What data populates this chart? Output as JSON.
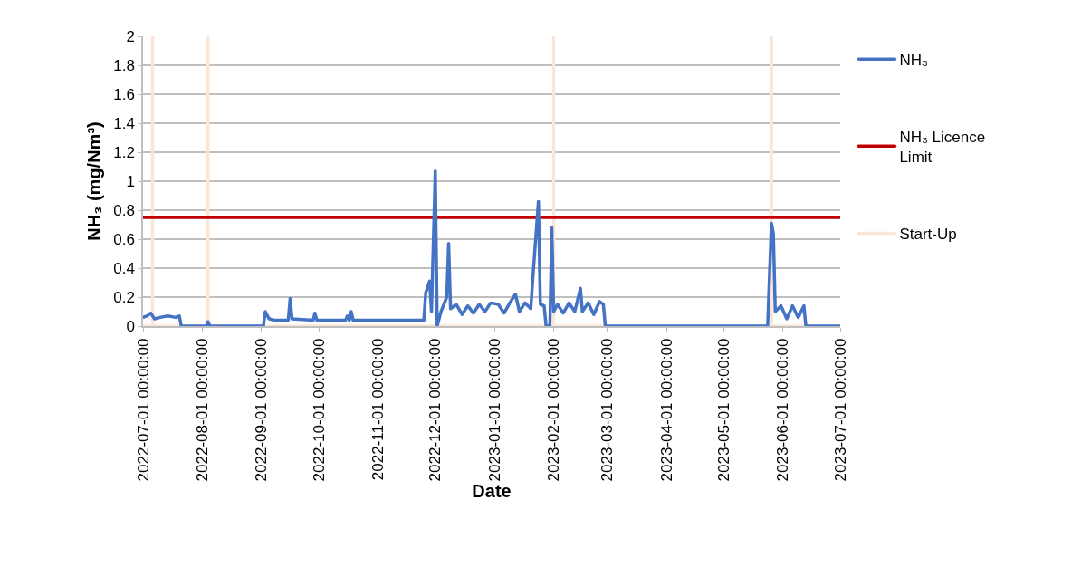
{
  "chart_data": {
    "type": "line",
    "xlabel": "Date",
    "ylabel": "NH₃ (mg/Nm³)",
    "xlim": [
      "2022-07-01",
      "2023-07-01"
    ],
    "xticks": [
      {
        "value": "2022-07-01",
        "label": "2022-07-01 00:00:00"
      },
      {
        "value": "2022-08-01",
        "label": "2022-08-01 00:00:00"
      },
      {
        "value": "2022-09-01",
        "label": "2022-09-01 00:00:00"
      },
      {
        "value": "2022-10-01",
        "label": "2022-10-01 00:00:00"
      },
      {
        "value": "2022-11-01",
        "label": "2022-11-01 00:00:00"
      },
      {
        "value": "2022-12-01",
        "label": "2022-12-01 00:00:00"
      },
      {
        "value": "2023-01-01",
        "label": "2023-01-01 00:00:00"
      },
      {
        "value": "2023-02-01",
        "label": "2023-02-01 00:00:00"
      },
      {
        "value": "2023-03-01",
        "label": "2023-03-01 00:00:00"
      },
      {
        "value": "2023-04-01",
        "label": "2023-04-01 00:00:00"
      },
      {
        "value": "2023-05-01",
        "label": "2023-05-01 00:00:00"
      },
      {
        "value": "2023-06-01",
        "label": "2023-06-01 00:00:00"
      },
      {
        "value": "2023-07-01",
        "label": "2023-07-01 00:00:00"
      }
    ],
    "ylim": [
      0,
      2
    ],
    "yticks": [
      0,
      0.2,
      0.4,
      0.6,
      0.8,
      1,
      1.2,
      1.4,
      1.6,
      1.8,
      2
    ],
    "grid": "y",
    "legend": "right",
    "marker": "none",
    "line_style": "solid",
    "series": [
      {
        "name": "NH₃",
        "color": "#4472c4",
        "x": [
          "2022-07-01",
          "2022-07-03",
          "2022-07-05",
          "2022-07-07",
          "2022-07-10",
          "2022-07-14",
          "2022-07-18",
          "2022-07-20",
          "2022-07-21",
          "2022-08-03",
          "2022-08-04",
          "2022-08-05",
          "2022-09-02",
          "2022-09-03",
          "2022-09-05",
          "2022-09-08",
          "2022-09-15",
          "2022-09-16",
          "2022-09-17",
          "2022-09-28",
          "2022-09-29",
          "2022-09-30",
          "2022-10-15",
          "2022-10-16",
          "2022-10-17",
          "2022-10-18",
          "2022-10-19",
          "2022-11-25",
          "2022-11-26",
          "2022-11-28",
          "2022-11-29",
          "2022-12-01",
          "2022-12-02",
          "2022-12-04",
          "2022-12-07",
          "2022-12-08",
          "2022-12-09",
          "2022-12-12",
          "2022-12-15",
          "2022-12-18",
          "2022-12-21",
          "2022-12-24",
          "2022-12-27",
          "2022-12-30",
          "2023-01-03",
          "2023-01-06",
          "2023-01-09",
          "2023-01-12",
          "2023-01-14",
          "2023-01-17",
          "2023-01-20",
          "2023-01-21",
          "2023-01-24",
          "2023-01-25",
          "2023-01-27",
          "2023-01-28",
          "2023-01-30",
          "2023-01-31",
          "2023-02-01",
          "2023-02-03",
          "2023-02-06",
          "2023-02-09",
          "2023-02-12",
          "2023-02-15",
          "2023-02-16",
          "2023-02-19",
          "2023-02-22",
          "2023-02-25",
          "2023-02-27",
          "2023-02-28",
          "2023-05-24",
          "2023-05-26",
          "2023-05-27",
          "2023-05-28",
          "2023-05-31",
          "2023-06-03",
          "2023-06-06",
          "2023-06-09",
          "2023-06-12",
          "2023-06-13",
          "2023-07-01"
        ],
        "values": [
          0.06,
          0.07,
          0.09,
          0.05,
          0.06,
          0.07,
          0.06,
          0.07,
          0,
          0,
          0.03,
          0,
          0,
          0.1,
          0.05,
          0.04,
          0.04,
          0.19,
          0.05,
          0.04,
          0.09,
          0.04,
          0.04,
          0.07,
          0.04,
          0.1,
          0.04,
          0.04,
          0.23,
          0.31,
          0.1,
          1.07,
          0,
          0.1,
          0.2,
          0.57,
          0.12,
          0.15,
          0.08,
          0.14,
          0.09,
          0.15,
          0.1,
          0.16,
          0.15,
          0.09,
          0.16,
          0.22,
          0.1,
          0.16,
          0.12,
          0.32,
          0.86,
          0.15,
          0.14,
          0,
          0,
          0.68,
          0.1,
          0.15,
          0.09,
          0.16,
          0.1,
          0.26,
          0.1,
          0.16,
          0.08,
          0.17,
          0.15,
          0,
          0,
          0.71,
          0.64,
          0.1,
          0.14,
          0.05,
          0.14,
          0.06,
          0.14,
          0,
          0
        ]
      },
      {
        "name": "NH₃ Licence Limit",
        "color": "#c00000",
        "x": [
          "2022-07-01",
          "2023-07-01"
        ],
        "values": [
          0.75,
          0.75
        ]
      },
      {
        "name": "Start-Up",
        "color": "#fbe5d6",
        "x": [
          "2022-07-01",
          "2022-07-06",
          "2022-07-06",
          "2022-07-06",
          "2022-08-04",
          "2022-08-04",
          "2022-08-04",
          "2023-02-01",
          "2023-02-01",
          "2023-02-01",
          "2023-05-26",
          "2023-05-26",
          "2023-05-26",
          "2023-07-01"
        ],
        "values": [
          0,
          0,
          2,
          0,
          0,
          2,
          0,
          0,
          2,
          0,
          0,
          2,
          0,
          0
        ]
      }
    ]
  }
}
